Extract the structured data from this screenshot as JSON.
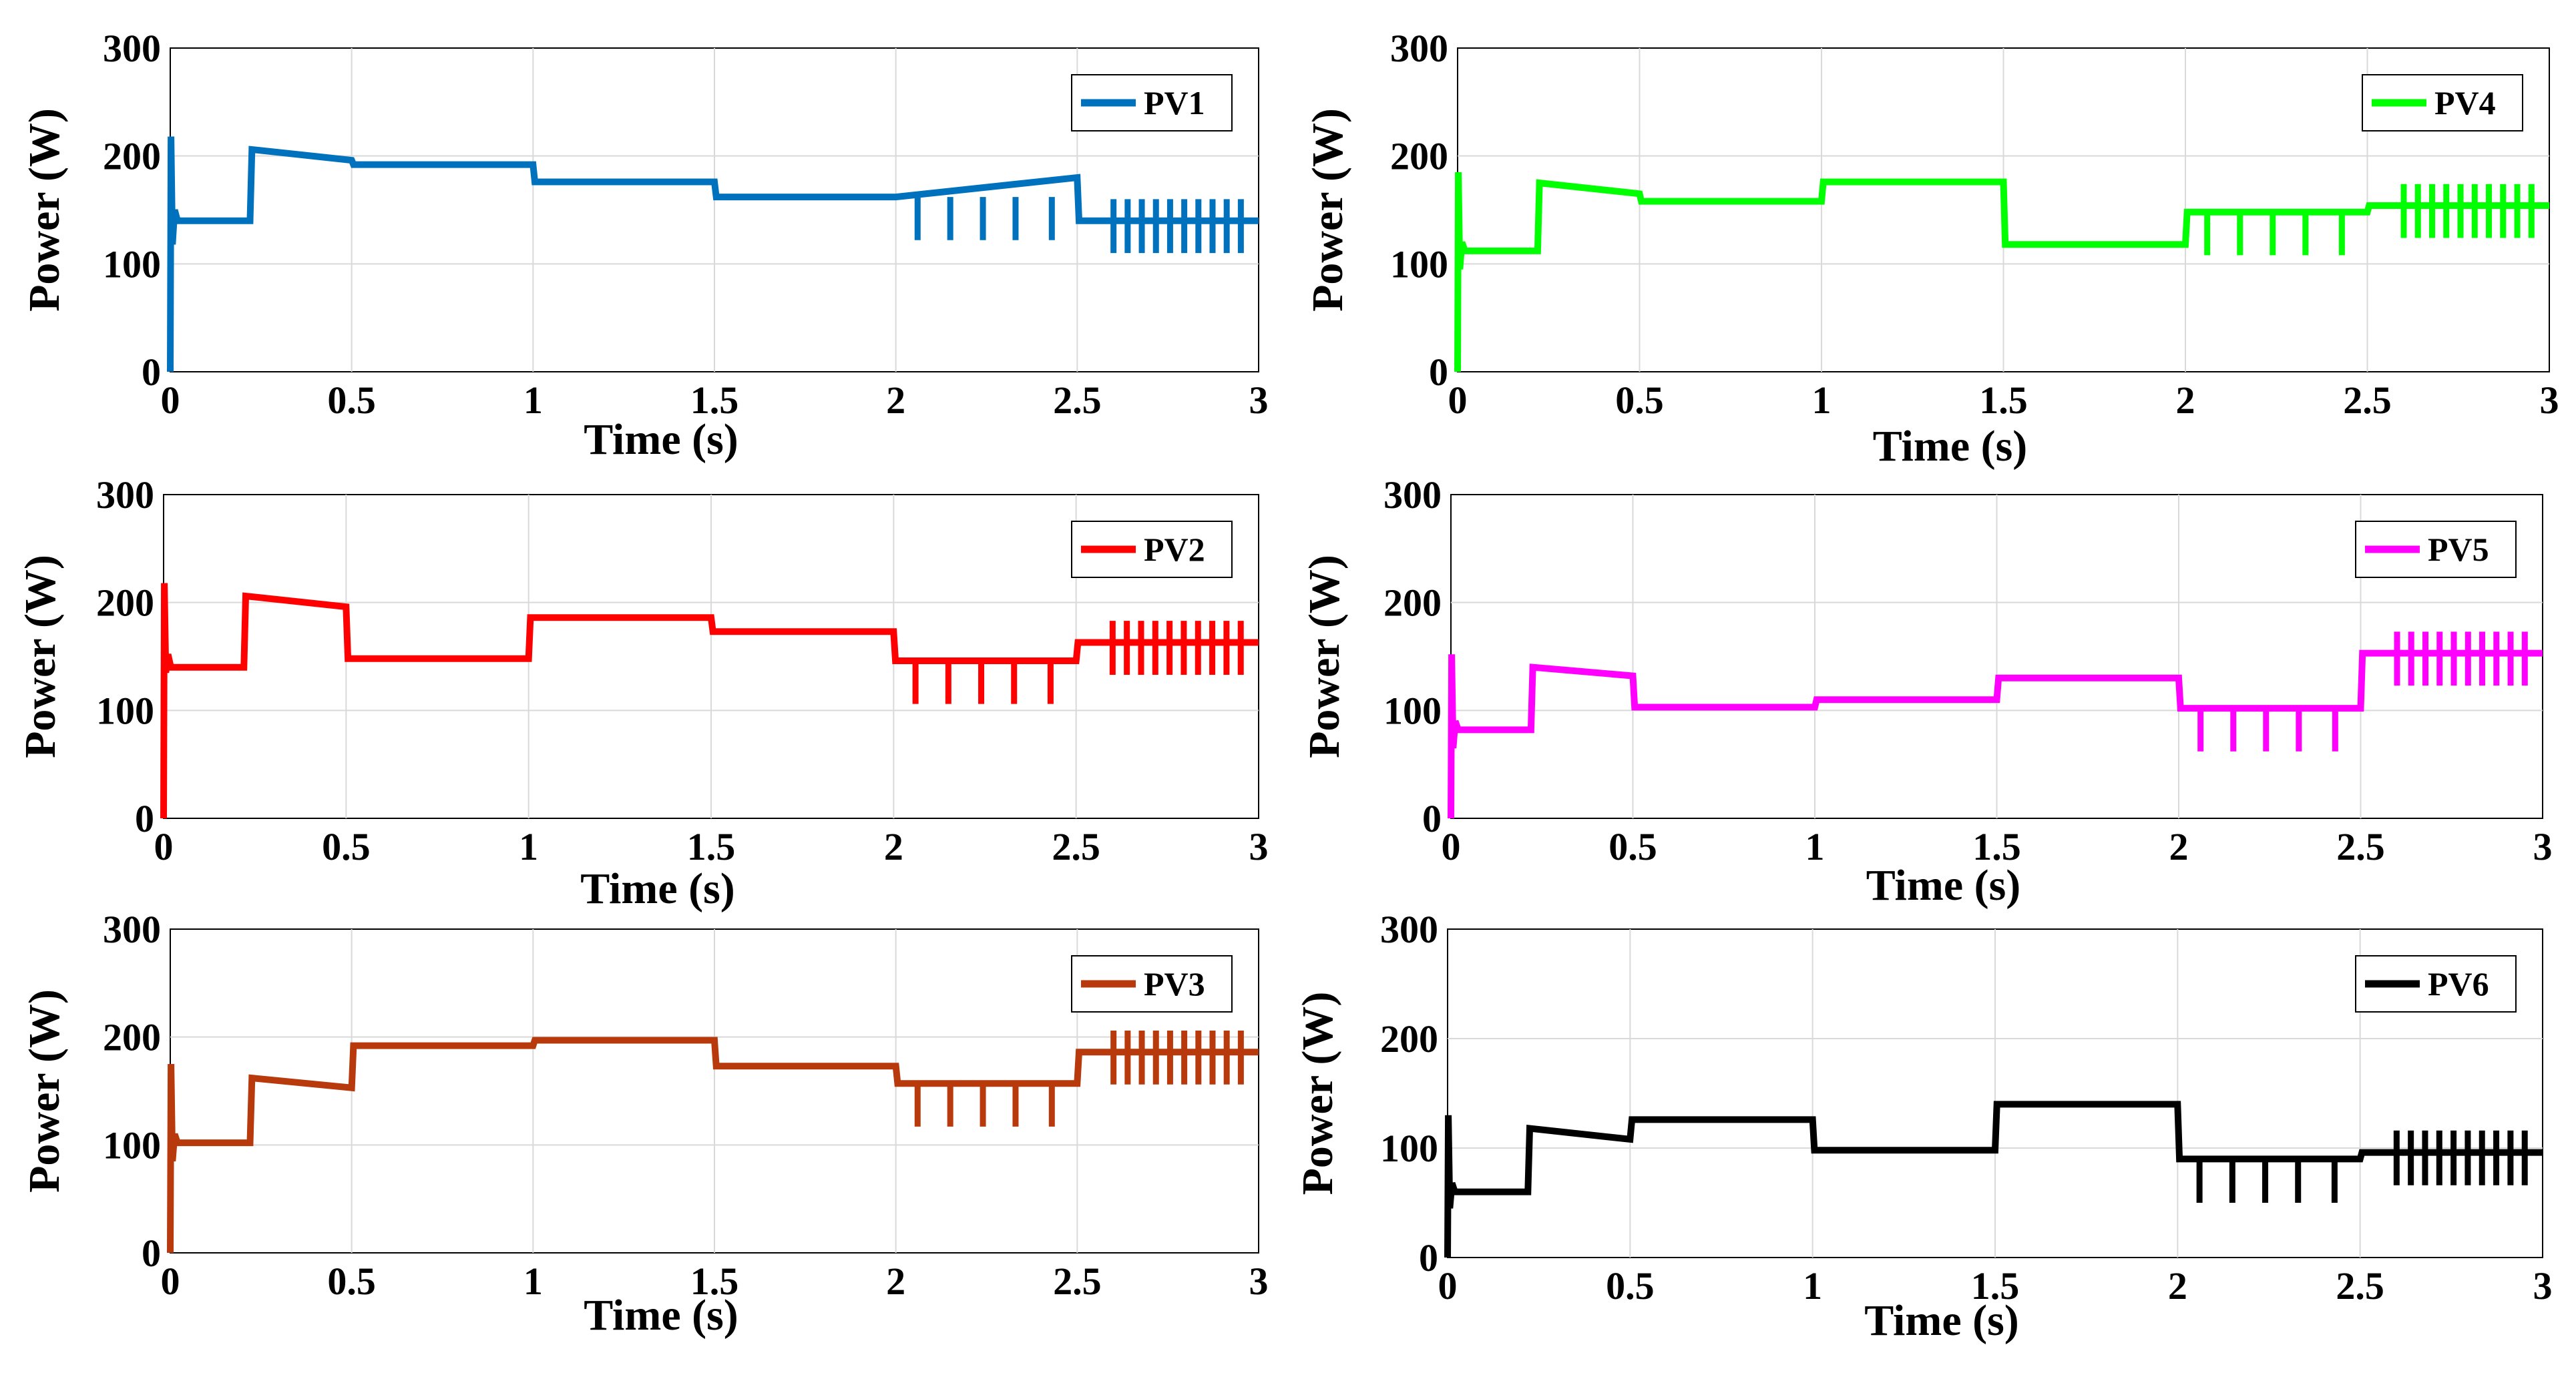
{
  "chart_data": [
    {
      "type": "line",
      "xlabel": "Time (s)",
      "ylabel": "Power (W)",
      "xlim": [
        0,
        3
      ],
      "ylim": [
        0,
        300
      ],
      "xticks": [
        "0",
        "0.5",
        "1",
        "1.5",
        "2",
        "2.5",
        "3"
      ],
      "yticks": [
        "0",
        "100",
        "200",
        "300"
      ],
      "grid": true,
      "legend_position": "top-right",
      "series": [
        {
          "name": "PV1",
          "color": "#0072BD",
          "x": [
            0,
            0.002,
            0.006,
            0.012,
            0.02,
            0.22,
            0.225,
            0.5,
            0.505,
            1,
            1.005,
            1.5,
            1.505,
            2,
            2.5,
            2.505,
            3
          ],
          "y": [
            0,
            218,
            118,
            150,
            140,
            140,
            206,
            196,
            192,
            192,
            176,
            176,
            162,
            162,
            180,
            140,
            140
          ]
        }
      ]
    },
    {
      "type": "line",
      "xlabel": "Time (s)",
      "ylabel": "Power (W)",
      "xlim": [
        0,
        3
      ],
      "ylim": [
        0,
        300
      ],
      "xticks": [
        "0",
        "0.5",
        "1",
        "1.5",
        "2",
        "2.5",
        "3"
      ],
      "yticks": [
        "0",
        "100",
        "200",
        "300"
      ],
      "grid": true,
      "legend_position": "top-right",
      "series": [
        {
          "name": "PV2",
          "color": "#FF0000",
          "x": [
            0,
            0.002,
            0.006,
            0.012,
            0.02,
            0.22,
            0.225,
            0.5,
            0.505,
            1,
            1.005,
            1.5,
            1.505,
            2,
            2.005,
            2.5,
            2.505,
            3
          ],
          "y": [
            0,
            218,
            135,
            152,
            140,
            140,
            206,
            196,
            148,
            148,
            186,
            186,
            173,
            173,
            146,
            146,
            163,
            163
          ]
        }
      ]
    },
    {
      "type": "line",
      "xlabel": "Time (s)",
      "ylabel": "Power (W)",
      "xlim": [
        0,
        3
      ],
      "ylim": [
        0,
        300
      ],
      "xticks": [
        "0",
        "0.5",
        "1",
        "1.5",
        "2",
        "2.5",
        "3"
      ],
      "yticks": [
        "0",
        "100",
        "200",
        "300"
      ],
      "grid": true,
      "legend_position": "top-right",
      "series": [
        {
          "name": "PV3",
          "color": "#B83A0C",
          "x": [
            0,
            0.002,
            0.006,
            0.012,
            0.02,
            0.22,
            0.225,
            0.5,
            0.505,
            1,
            1.005,
            1.5,
            1.505,
            2,
            2.005,
            2.5,
            2.505,
            3
          ],
          "y": [
            0,
            175,
            85,
            110,
            102,
            102,
            162,
            153,
            192,
            192,
            197,
            197,
            173,
            173,
            157,
            157,
            186,
            186
          ]
        }
      ]
    },
    {
      "type": "line",
      "xlabel": "Time (s)",
      "ylabel": "Power (W)",
      "xlim": [
        0,
        3
      ],
      "ylim": [
        0,
        300
      ],
      "xticks": [
        "0",
        "0.5",
        "1",
        "1.5",
        "2",
        "2.5",
        "3"
      ],
      "yticks": [
        "0",
        "100",
        "200",
        "300"
      ],
      "grid": true,
      "legend_position": "top-right",
      "series": [
        {
          "name": "PV4",
          "color": "#00FF00",
          "x": [
            0,
            0.002,
            0.006,
            0.012,
            0.02,
            0.22,
            0.225,
            0.5,
            0.505,
            1,
            1.005,
            1.5,
            1.505,
            2,
            2.005,
            2.5,
            2.505,
            3
          ],
          "y": [
            0,
            185,
            95,
            120,
            112,
            112,
            175,
            165,
            158,
            158,
            176,
            176,
            118,
            118,
            148,
            148,
            154,
            154
          ]
        }
      ]
    },
    {
      "type": "line",
      "xlabel": "Time (s)",
      "ylabel": "Power (W)",
      "xlim": [
        0,
        3
      ],
      "ylim": [
        0,
        300
      ],
      "xticks": [
        "0",
        "0.5",
        "1",
        "1.5",
        "2",
        "2.5",
        "3"
      ],
      "yticks": [
        "0",
        "100",
        "200",
        "300"
      ],
      "grid": true,
      "legend_position": "top-right",
      "series": [
        {
          "name": "PV5",
          "color": "#FF00FF",
          "x": [
            0,
            0.002,
            0.006,
            0.012,
            0.02,
            0.22,
            0.225,
            0.5,
            0.505,
            1,
            1.005,
            1.5,
            1.505,
            2,
            2.005,
            2.5,
            2.505,
            3
          ],
          "y": [
            0,
            152,
            65,
            90,
            82,
            82,
            140,
            132,
            103,
            103,
            110,
            110,
            130,
            130,
            102,
            102,
            153,
            153
          ]
        }
      ]
    },
    {
      "type": "line",
      "xlabel": "Time (s)",
      "ylabel": "Power (W)",
      "xlim": [
        0,
        3
      ],
      "ylim": [
        0,
        300
      ],
      "xticks": [
        "0",
        "0.5",
        "1",
        "1.5",
        "2",
        "2.5",
        "3"
      ],
      "yticks": [
        "0",
        "100",
        "200",
        "300"
      ],
      "grid": true,
      "legend_position": "top-right",
      "series": [
        {
          "name": "PV6",
          "color": "#000000",
          "x": [
            0,
            0.002,
            0.006,
            0.012,
            0.02,
            0.22,
            0.225,
            0.5,
            0.505,
            1,
            1.005,
            1.5,
            1.505,
            2,
            2.005,
            2.5,
            2.505,
            3
          ],
          "y": [
            0,
            130,
            45,
            68,
            60,
            60,
            118,
            108,
            126,
            126,
            98,
            98,
            140,
            140,
            90,
            90,
            96,
            96
          ]
        }
      ]
    }
  ]
}
